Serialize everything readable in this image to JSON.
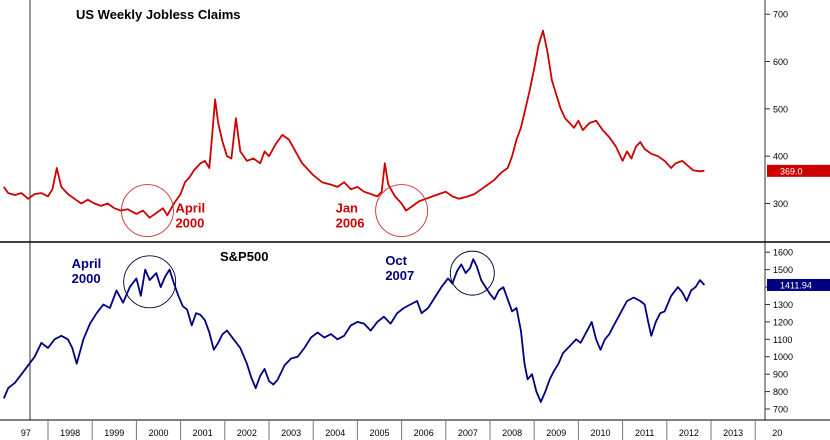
{
  "chart_data": [
    {
      "type": "line",
      "title": "US Weekly Jobless Claims",
      "y_ticks": [
        300,
        400,
        500,
        600,
        700
      ],
      "ylim": [
        225,
        730
      ],
      "last_value_label": "369.0",
      "series": [
        {
          "color": "#cc0000",
          "points": [
            [
              1997.0,
              335
            ],
            [
              1997.1,
              322
            ],
            [
              1997.25,
              318
            ],
            [
              1997.4,
              322
            ],
            [
              1997.55,
              310
            ],
            [
              1997.7,
              320
            ],
            [
              1997.85,
              322
            ],
            [
              1998.0,
              315
            ],
            [
              1998.1,
              330
            ],
            [
              1998.2,
              375
            ],
            [
              1998.3,
              335
            ],
            [
              1998.45,
              320
            ],
            [
              1998.6,
              310
            ],
            [
              1998.75,
              300
            ],
            [
              1998.9,
              308
            ],
            [
              1999.05,
              300
            ],
            [
              1999.2,
              295
            ],
            [
              1999.35,
              300
            ],
            [
              1999.5,
              290
            ],
            [
              1999.65,
              285
            ],
            [
              1999.8,
              288
            ],
            [
              2000.0,
              278
            ],
            [
              2000.15,
              285
            ],
            [
              2000.3,
              270
            ],
            [
              2000.45,
              280
            ],
            [
              2000.6,
              290
            ],
            [
              2000.7,
              275
            ],
            [
              2000.85,
              300
            ],
            [
              2001.0,
              320
            ],
            [
              2001.1,
              345
            ],
            [
              2001.2,
              355
            ],
            [
              2001.3,
              370
            ],
            [
              2001.45,
              385
            ],
            [
              2001.55,
              390
            ],
            [
              2001.65,
              375
            ],
            [
              2001.72,
              450
            ],
            [
              2001.78,
              520
            ],
            [
              2001.85,
              470
            ],
            [
              2001.95,
              430
            ],
            [
              2002.05,
              400
            ],
            [
              2002.15,
              395
            ],
            [
              2002.25,
              480
            ],
            [
              2002.35,
              410
            ],
            [
              2002.5,
              390
            ],
            [
              2002.65,
              395
            ],
            [
              2002.8,
              385
            ],
            [
              2002.9,
              410
            ],
            [
              2003.0,
              400
            ],
            [
              2003.15,
              425
            ],
            [
              2003.3,
              445
            ],
            [
              2003.45,
              435
            ],
            [
              2003.6,
              410
            ],
            [
              2003.75,
              385
            ],
            [
              2003.9,
              370
            ],
            [
              2004.0,
              360
            ],
            [
              2004.2,
              345
            ],
            [
              2004.4,
              340
            ],
            [
              2004.55,
              335
            ],
            [
              2004.7,
              345
            ],
            [
              2004.85,
              330
            ],
            [
              2005.0,
              335
            ],
            [
              2005.15,
              325
            ],
            [
              2005.3,
              320
            ],
            [
              2005.45,
              315
            ],
            [
              2005.55,
              325
            ],
            [
              2005.62,
              385
            ],
            [
              2005.7,
              340
            ],
            [
              2005.85,
              315
            ],
            [
              2006.0,
              300
            ],
            [
              2006.1,
              285
            ],
            [
              2006.25,
              295
            ],
            [
              2006.4,
              305
            ],
            [
              2006.55,
              310
            ],
            [
              2006.7,
              315
            ],
            [
              2006.85,
              320
            ],
            [
              2007.0,
              325
            ],
            [
              2007.15,
              315
            ],
            [
              2007.3,
              310
            ],
            [
              2007.5,
              315
            ],
            [
              2007.65,
              320
            ],
            [
              2007.8,
              330
            ],
            [
              2007.95,
              340
            ],
            [
              2008.1,
              350
            ],
            [
              2008.25,
              365
            ],
            [
              2008.4,
              375
            ],
            [
              2008.5,
              400
            ],
            [
              2008.6,
              435
            ],
            [
              2008.7,
              460
            ],
            [
              2008.8,
              500
            ],
            [
              2008.9,
              540
            ],
            [
              2009.0,
              585
            ],
            [
              2009.1,
              635
            ],
            [
              2009.2,
              665
            ],
            [
              2009.3,
              620
            ],
            [
              2009.4,
              560
            ],
            [
              2009.5,
              530
            ],
            [
              2009.6,
              500
            ],
            [
              2009.7,
              480
            ],
            [
              2009.8,
              470
            ],
            [
              2009.9,
              460
            ],
            [
              2010.0,
              475
            ],
            [
              2010.1,
              455
            ],
            [
              2010.25,
              470
            ],
            [
              2010.4,
              475
            ],
            [
              2010.55,
              455
            ],
            [
              2010.7,
              440
            ],
            [
              2010.85,
              420
            ],
            [
              2011.0,
              390
            ],
            [
              2011.1,
              410
            ],
            [
              2011.2,
              395
            ],
            [
              2011.3,
              420
            ],
            [
              2011.4,
              430
            ],
            [
              2011.5,
              415
            ],
            [
              2011.65,
              405
            ],
            [
              2011.8,
              400
            ],
            [
              2011.95,
              390
            ],
            [
              2012.1,
              375
            ],
            [
              2012.2,
              385
            ],
            [
              2012.35,
              390
            ],
            [
              2012.45,
              382
            ],
            [
              2012.6,
              370
            ],
            [
              2012.75,
              368
            ],
            [
              2012.85,
              369
            ]
          ]
        }
      ],
      "annotations": [
        {
          "text": [
            "April",
            "2000"
          ],
          "x": 2000.25,
          "y": 285,
          "color": "#cc0000"
        },
        {
          "text": [
            "Jan",
            "2006"
          ],
          "x": 2006.0,
          "y": 285,
          "color": "#cc0000"
        }
      ]
    },
    {
      "type": "line",
      "title": "S&P500",
      "y_ticks": [
        700,
        800,
        900,
        1000,
        1100,
        1200,
        1300,
        1400,
        1500,
        1600
      ],
      "ylim": [
        650,
        1630
      ],
      "last_value_label": "1411.94",
      "series": [
        {
          "color": "#000080",
          "points": [
            [
              1997.0,
              760
            ],
            [
              1997.1,
              820
            ],
            [
              1997.25,
              850
            ],
            [
              1997.4,
              900
            ],
            [
              1997.55,
              950
            ],
            [
              1997.7,
              1000
            ],
            [
              1997.85,
              1080
            ],
            [
              1998.0,
              1050
            ],
            [
              1998.15,
              1100
            ],
            [
              1998.3,
              1120
            ],
            [
              1998.45,
              1100
            ],
            [
              1998.55,
              1050
            ],
            [
              1998.65,
              960
            ],
            [
              1998.8,
              1100
            ],
            [
              1998.95,
              1190
            ],
            [
              1999.1,
              1250
            ],
            [
              1999.25,
              1300
            ],
            [
              1999.4,
              1280
            ],
            [
              1999.55,
              1380
            ],
            [
              1999.7,
              1310
            ],
            [
              1999.85,
              1400
            ],
            [
              2000.0,
              1450
            ],
            [
              2000.1,
              1350
            ],
            [
              2000.2,
              1500
            ],
            [
              2000.3,
              1440
            ],
            [
              2000.45,
              1480
            ],
            [
              2000.55,
              1400
            ],
            [
              2000.65,
              1460
            ],
            [
              2000.75,
              1500
            ],
            [
              2000.85,
              1420
            ],
            [
              2000.95,
              1350
            ],
            [
              2001.05,
              1290
            ],
            [
              2001.15,
              1270
            ],
            [
              2001.25,
              1180
            ],
            [
              2001.35,
              1250
            ],
            [
              2001.45,
              1240
            ],
            [
              2001.55,
              1210
            ],
            [
              2001.65,
              1140
            ],
            [
              2001.75,
              1040
            ],
            [
              2001.85,
              1080
            ],
            [
              2001.95,
              1130
            ],
            [
              2002.05,
              1150
            ],
            [
              2002.2,
              1100
            ],
            [
              2002.35,
              1050
            ],
            [
              2002.5,
              960
            ],
            [
              2002.6,
              880
            ],
            [
              2002.7,
              820
            ],
            [
              2002.8,
              890
            ],
            [
              2002.9,
              930
            ],
            [
              2003.0,
              860
            ],
            [
              2003.1,
              840
            ],
            [
              2003.2,
              870
            ],
            [
              2003.35,
              950
            ],
            [
              2003.5,
              990
            ],
            [
              2003.65,
              1000
            ],
            [
              2003.8,
              1050
            ],
            [
              2003.95,
              1110
            ],
            [
              2004.1,
              1140
            ],
            [
              2004.25,
              1110
            ],
            [
              2004.4,
              1130
            ],
            [
              2004.55,
              1100
            ],
            [
              2004.7,
              1120
            ],
            [
              2004.85,
              1180
            ],
            [
              2005.0,
              1200
            ],
            [
              2005.15,
              1190
            ],
            [
              2005.3,
              1150
            ],
            [
              2005.45,
              1200
            ],
            [
              2005.6,
              1230
            ],
            [
              2005.75,
              1190
            ],
            [
              2005.9,
              1250
            ],
            [
              2006.05,
              1280
            ],
            [
              2006.2,
              1300
            ],
            [
              2006.35,
              1320
            ],
            [
              2006.45,
              1250
            ],
            [
              2006.6,
              1280
            ],
            [
              2006.75,
              1340
            ],
            [
              2006.9,
              1400
            ],
            [
              2007.05,
              1450
            ],
            [
              2007.15,
              1420
            ],
            [
              2007.25,
              1490
            ],
            [
              2007.35,
              1530
            ],
            [
              2007.45,
              1480
            ],
            [
              2007.55,
              1510
            ],
            [
              2007.62,
              1560
            ],
            [
              2007.7,
              1520
            ],
            [
              2007.8,
              1440
            ],
            [
              2007.9,
              1400
            ],
            [
              2008.0,
              1360
            ],
            [
              2008.1,
              1330
            ],
            [
              2008.2,
              1380
            ],
            [
              2008.3,
              1400
            ],
            [
              2008.4,
              1330
            ],
            [
              2008.5,
              1260
            ],
            [
              2008.6,
              1280
            ],
            [
              2008.7,
              1150
            ],
            [
              2008.78,
              960
            ],
            [
              2008.85,
              870
            ],
            [
              2008.95,
              900
            ],
            [
              2009.05,
              800
            ],
            [
              2009.15,
              740
            ],
            [
              2009.25,
              800
            ],
            [
              2009.35,
              870
            ],
            [
              2009.45,
              920
            ],
            [
              2009.55,
              960
            ],
            [
              2009.65,
              1020
            ],
            [
              2009.8,
              1060
            ],
            [
              2009.95,
              1100
            ],
            [
              2010.05,
              1080
            ],
            [
              2010.2,
              1150
            ],
            [
              2010.3,
              1200
            ],
            [
              2010.4,
              1100
            ],
            [
              2010.5,
              1040
            ],
            [
              2010.6,
              1100
            ],
            [
              2010.7,
              1130
            ],
            [
              2010.8,
              1180
            ],
            [
              2010.95,
              1250
            ],
            [
              2011.1,
              1320
            ],
            [
              2011.25,
              1340
            ],
            [
              2011.4,
              1320
            ],
            [
              2011.5,
              1300
            ],
            [
              2011.58,
              1200
            ],
            [
              2011.65,
              1120
            ],
            [
              2011.75,
              1200
            ],
            [
              2011.85,
              1250
            ],
            [
              2011.95,
              1260
            ],
            [
              2012.1,
              1350
            ],
            [
              2012.25,
              1400
            ],
            [
              2012.35,
              1370
            ],
            [
              2012.45,
              1320
            ],
            [
              2012.55,
              1380
            ],
            [
              2012.65,
              1400
            ],
            [
              2012.75,
              1440
            ],
            [
              2012.85,
              1412
            ]
          ]
        }
      ],
      "annotations": [
        {
          "text": [
            "April",
            "2000"
          ],
          "x": 2000.3,
          "y": 1430,
          "color": "#000080"
        },
        {
          "text": [
            "Oct",
            "2007"
          ],
          "x": 2007.6,
          "y": 1480,
          "color": "#000080"
        }
      ]
    }
  ],
  "x_tick_labels": [
    "97",
    "1998",
    "1999",
    "2000",
    "2001",
    "2002",
    "2003",
    "2004",
    "2005",
    "2006",
    "2007",
    "2008",
    "2009",
    "2010",
    "2011",
    "2012",
    "2013",
    "20"
  ]
}
